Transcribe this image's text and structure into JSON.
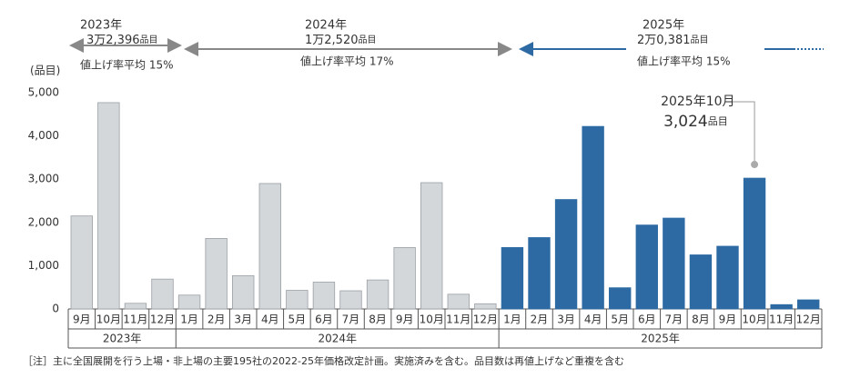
{
  "chart_data": {
    "type": "bar",
    "y_unit": "(品目)",
    "ylim": [
      0,
      5000
    ],
    "yticks": [
      0,
      {
        "value": 1000,
        "label": "1,000"
      },
      {
        "value": 2000,
        "label": "2,000"
      },
      {
        "value": 3000,
        "label": "3,000"
      },
      {
        "value": 4000,
        "label": "4,000"
      },
      {
        "value": 5000,
        "label": "5,000"
      }
    ],
    "groups": [
      {
        "name": "2023年",
        "color": "#d3d7da",
        "categories": [
          "9月",
          "10月",
          "11月",
          "12月"
        ],
        "values": [
          2150,
          4770,
          130,
          690
        ]
      },
      {
        "name": "2024年",
        "color": "#d3d7da",
        "categories": [
          "1月",
          "2月",
          "3月",
          "4月",
          "5月",
          "6月",
          "7月",
          "8月",
          "9月",
          "10月",
          "11月",
          "12月"
        ],
        "values": [
          320,
          1630,
          770,
          2900,
          430,
          620,
          420,
          670,
          1420,
          2920,
          340,
          120
        ]
      },
      {
        "name": "2025年",
        "color": "#2d6aa3",
        "categories": [
          "1月",
          "2月",
          "3月",
          "4月",
          "5月",
          "6月",
          "7月",
          "8月",
          "9月",
          "10月",
          "11月",
          "12月"
        ],
        "values": [
          1420,
          1650,
          2530,
          4220,
          490,
          1940,
          2100,
          1250,
          1450,
          3024,
          100,
          210
        ]
      }
    ],
    "summaries": [
      {
        "year": "2023年",
        "items": "3万2,396",
        "unit": "品目",
        "rate": "値上げ率平均 15%"
      },
      {
        "year": "2024年",
        "items": "1万2,520",
        "unit": "品目",
        "rate": "値上げ率平均 17%"
      },
      {
        "year": "2025年",
        "items": "2万0,381",
        "unit": "品目",
        "rate": "値上げ率平均 15%"
      }
    ],
    "callout": {
      "label": "2025年10月",
      "value_label": "3,024",
      "unit": "品目"
    },
    "note": "［注］主に全国展開を行う上場・非上場の主要195社の2022-25年価格改定計画。実施済みを含む。品目数は再値上げなど重複を含む"
  }
}
